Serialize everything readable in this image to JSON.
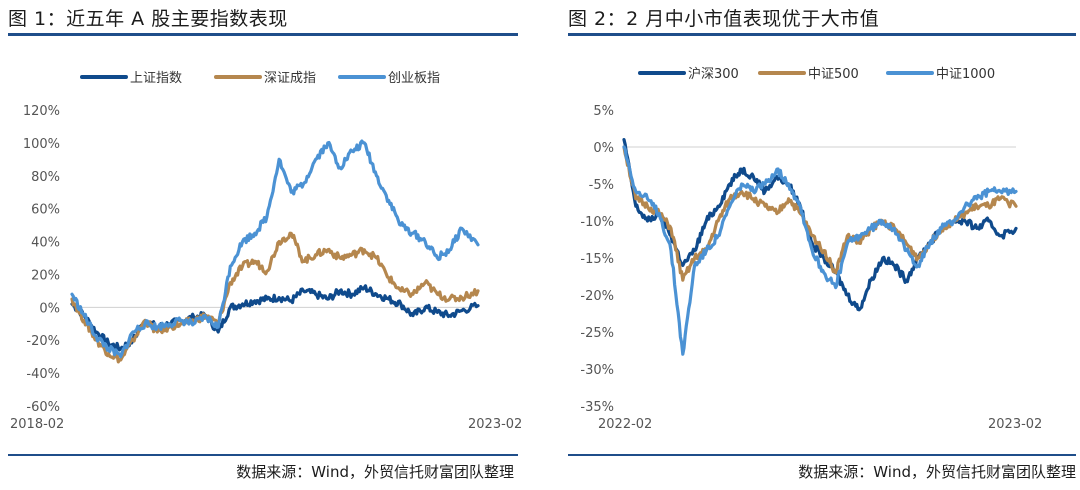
{
  "charts": [
    {
      "title": "图 1：近五年 A 股主要指数表现",
      "source": "数据来源：Wind，外贸信托财富团队整理",
      "chart_data": {
        "type": "line",
        "ylim": [
          -60,
          120
        ],
        "yticks": [
          "120%",
          "100%",
          "80%",
          "60%",
          "40%",
          "20%",
          "0%",
          "-20%",
          "-40%",
          "-60%"
        ],
        "ytick_values": [
          120,
          100,
          80,
          60,
          40,
          20,
          0,
          -20,
          -40,
          -60
        ],
        "xticks": [
          "2018-02",
          "2023-02"
        ],
        "legend_position": "top",
        "grid": false,
        "x": [
          0,
          0.03,
          0.06,
          0.09,
          0.12,
          0.15,
          0.18,
          0.21,
          0.24,
          0.27,
          0.3,
          0.33,
          0.36,
          0.39,
          0.42,
          0.45,
          0.48,
          0.51,
          0.54,
          0.57,
          0.6,
          0.63,
          0.66,
          0.69,
          0.72,
          0.75,
          0.78,
          0.81,
          0.84,
          0.87,
          0.9,
          0.93,
          0.96,
          1.0
        ],
        "series": [
          {
            "name": "上证指数",
            "color": "#0f4a8c",
            "values": [
              2,
              -5,
              -15,
              -22,
              -25,
              -20,
              -8,
              -12,
              -10,
              -8,
              -6,
              -5,
              -15,
              0,
              2,
              4,
              5,
              6,
              4,
              10,
              8,
              5,
              10,
              8,
              12,
              8,
              5,
              2,
              -5,
              0,
              -3,
              -5,
              -2,
              1
            ]
          },
          {
            "name": "深证成指",
            "color": "#b5874e",
            "values": [
              5,
              -8,
              -20,
              -28,
              -32,
              -20,
              -8,
              -15,
              -12,
              -10,
              -8,
              -5,
              -10,
              15,
              25,
              28,
              22,
              40,
              45,
              28,
              32,
              35,
              30,
              32,
              35,
              30,
              18,
              10,
              8,
              15,
              8,
              5,
              6,
              10
            ]
          },
          {
            "name": "创业板指",
            "color": "#4b92d4",
            "values": [
              8,
              -5,
              -18,
              -25,
              -30,
              -15,
              -10,
              -12,
              -10,
              -8,
              -10,
              -6,
              -12,
              25,
              40,
              45,
              55,
              90,
              70,
              75,
              90,
              100,
              85,
              95,
              100,
              80,
              65,
              50,
              45,
              40,
              30,
              35,
              48,
              38
            ]
          }
        ]
      }
    },
    {
      "title": "图 2：2 月中小市值表现优于大市值",
      "source": "数据来源：Wind，外贸信托财富团队整理",
      "chart_data": {
        "type": "line",
        "ylim": [
          -35,
          5
        ],
        "yticks": [
          "5%",
          "0%",
          "-5%",
          "-10%",
          "-15%",
          "-20%",
          "-25%",
          "-30%",
          "-35%"
        ],
        "ytick_values": [
          5,
          0,
          -5,
          -10,
          -15,
          -20,
          -25,
          -30,
          -35
        ],
        "xticks": [
          "2022-02",
          "2023-02"
        ],
        "legend_position": "top",
        "grid": false,
        "x": [
          0,
          0.03,
          0.06,
          0.09,
          0.12,
          0.15,
          0.18,
          0.21,
          0.24,
          0.27,
          0.3,
          0.33,
          0.36,
          0.39,
          0.42,
          0.45,
          0.48,
          0.51,
          0.54,
          0.57,
          0.6,
          0.63,
          0.66,
          0.69,
          0.72,
          0.75,
          0.78,
          0.81,
          0.84,
          0.87,
          0.9,
          0.93,
          0.96,
          1.0
        ],
        "series": [
          {
            "name": "沪深300",
            "color": "#0f4a8c",
            "values": [
              1,
              -8,
              -10,
              -9,
              -12,
              -16,
              -14,
              -10,
              -8,
              -5,
              -3,
              -4,
              -6,
              -4,
              -5,
              -8,
              -13,
              -15,
              -17,
              -20,
              -22,
              -18,
              -15,
              -16,
              -18,
              -15,
              -13,
              -11,
              -10,
              -10,
              -11,
              -10,
              -12,
              -11
            ]
          },
          {
            "name": "中证500",
            "color": "#b5874e",
            "values": [
              0,
              -7,
              -8,
              -9,
              -11,
              -18,
              -15,
              -14,
              -10,
              -7,
              -6,
              -7,
              -8,
              -9,
              -7,
              -9,
              -12,
              -14,
              -17,
              -12,
              -13,
              -11,
              -10,
              -11,
              -13,
              -15,
              -13,
              -11,
              -10,
              -9,
              -8,
              -8,
              -7,
              -8
            ]
          },
          {
            "name": "中证1000",
            "color": "#4b92d4",
            "values": [
              0,
              -6,
              -7,
              -9,
              -14,
              -28,
              -16,
              -14,
              -12,
              -8,
              -5,
              -6,
              -5,
              -3,
              -5,
              -8,
              -14,
              -17,
              -19,
              -13,
              -12,
              -11,
              -10,
              -11,
              -14,
              -16,
              -13,
              -11,
              -10,
              -8,
              -7,
              -6,
              -6,
              -6
            ]
          }
        ]
      }
    }
  ]
}
